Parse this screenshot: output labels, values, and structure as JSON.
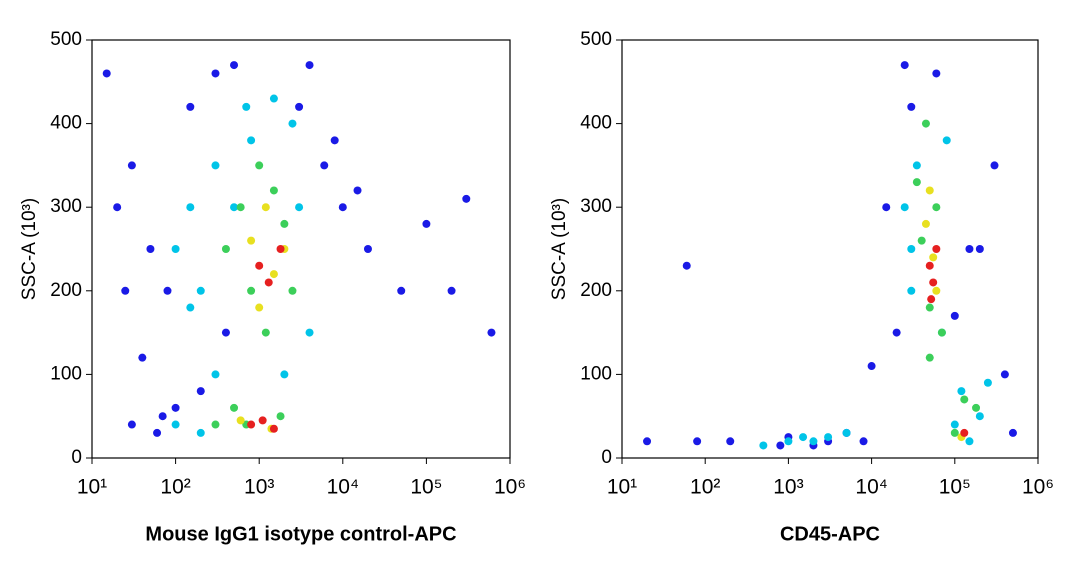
{
  "chart_data": [
    {
      "type": "scatter",
      "xlabel": "Mouse IgG1 isotype control-APC",
      "ylabel": "SSC-A (10³)",
      "xscale": "log",
      "xlim": [
        10,
        1000000
      ],
      "xticks": [
        {
          "value": 10,
          "label": "10¹"
        },
        {
          "value": 100,
          "label": "10²"
        },
        {
          "value": 1000,
          "label": "10³"
        },
        {
          "value": 10000,
          "label": "10⁴"
        },
        {
          "value": 100000,
          "label": "10⁵"
        },
        {
          "value": 1000000,
          "label": "10⁶"
        }
      ],
      "ylim": [
        0,
        500
      ],
      "yticks": [
        0,
        100,
        200,
        300,
        400,
        500
      ],
      "series": [
        {
          "color": "#1a1ae6",
          "x": [
            15,
            20,
            30,
            50,
            80,
            150,
            300,
            500,
            4000,
            6000,
            10000,
            20000,
            50000,
            100000,
            200000,
            300000,
            600000,
            40,
            70,
            200,
            400,
            3000,
            8000,
            15000,
            30,
            60,
            100,
            25
          ],
          "values": [
            460,
            300,
            350,
            250,
            200,
            420,
            460,
            470,
            470,
            350,
            300,
            250,
            200,
            280,
            200,
            310,
            150,
            120,
            50,
            80,
            150,
            420,
            380,
            320,
            40,
            30,
            60,
            200
          ]
        },
        {
          "color": "#00c4e8",
          "x": [
            100,
            150,
            200,
            300,
            500,
            700,
            1500,
            2500,
            3000,
            100,
            200,
            300,
            150,
            4000,
            2000,
            800
          ],
          "values": [
            250,
            300,
            200,
            350,
            300,
            420,
            430,
            400,
            300,
            40,
            30,
            100,
            180,
            150,
            100,
            380
          ]
        },
        {
          "color": "#3ccf5a",
          "x": [
            400,
            600,
            800,
            1000,
            1500,
            2000,
            2500,
            1200,
            700,
            500,
            1800,
            300
          ],
          "values": [
            250,
            300,
            200,
            350,
            320,
            280,
            200,
            150,
            40,
            60,
            50,
            40
          ]
        },
        {
          "color": "#e8e020",
          "x": [
            800,
            1200,
            1500,
            2000,
            1000,
            600,
            1400
          ],
          "values": [
            260,
            300,
            220,
            250,
            180,
            45,
            35
          ]
        },
        {
          "color": "#e62020",
          "x": [
            1000,
            1300,
            1800,
            800,
            1100,
            1500
          ],
          "values": [
            230,
            210,
            250,
            40,
            45,
            35
          ]
        }
      ]
    },
    {
      "type": "scatter",
      "xlabel": "CD45-APC",
      "ylabel": "SSC-A (10³)",
      "xscale": "log",
      "xlim": [
        10,
        1000000
      ],
      "xticks": [
        {
          "value": 10,
          "label": "10¹"
        },
        {
          "value": 100,
          "label": "10²"
        },
        {
          "value": 1000,
          "label": "10³"
        },
        {
          "value": 10000,
          "label": "10⁴"
        },
        {
          "value": 100000,
          "label": "10⁵"
        },
        {
          "value": 1000000,
          "label": "10⁶"
        }
      ],
      "ylim": [
        0,
        500
      ],
      "yticks": [
        0,
        100,
        200,
        300,
        400,
        500
      ],
      "series": [
        {
          "color": "#1a1ae6",
          "x": [
            20,
            60,
            80,
            200,
            800,
            1000,
            2000,
            3000,
            5000,
            8000,
            15000,
            20000,
            200000,
            300000,
            400000,
            500000,
            100000,
            10000,
            30000,
            60000,
            150000,
            25000
          ],
          "values": [
            20,
            230,
            20,
            20,
            15,
            25,
            15,
            20,
            30,
            20,
            300,
            150,
            250,
            350,
            100,
            30,
            170,
            110,
            420,
            460,
            250,
            470
          ]
        },
        {
          "color": "#00c4e8",
          "x": [
            500,
            1000,
            1500,
            2000,
            3000,
            5000,
            25000,
            30000,
            35000,
            80000,
            100000,
            120000,
            200000,
            250000,
            30000,
            70000,
            150000
          ],
          "values": [
            15,
            20,
            25,
            20,
            25,
            30,
            300,
            200,
            350,
            380,
            40,
            80,
            50,
            90,
            250,
            150,
            20
          ]
        },
        {
          "color": "#3ccf5a",
          "x": [
            35000,
            40000,
            50000,
            60000,
            45000,
            70000,
            100000,
            130000,
            180000,
            50000
          ],
          "values": [
            330,
            260,
            180,
            300,
            400,
            150,
            30,
            70,
            60,
            120
          ]
        },
        {
          "color": "#e8e020",
          "x": [
            45000,
            55000,
            60000,
            50000,
            120000
          ],
          "values": [
            280,
            240,
            200,
            320,
            25
          ]
        },
        {
          "color": "#e62020",
          "x": [
            50000,
            55000,
            60000,
            52000,
            130000
          ],
          "values": [
            230,
            210,
            250,
            190,
            30
          ]
        }
      ]
    }
  ]
}
